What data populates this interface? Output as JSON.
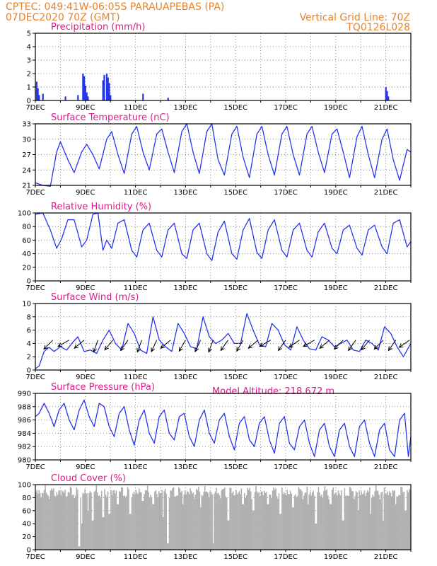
{
  "header": {
    "line1": "CPTEC:   049:41W-06:05S   PARAUAPEBAS (PA)",
    "line2_left": "07DEC2020 70Z (GMT)",
    "line2_right": "Vertical Grid Line: 70Z",
    "line3_right": "TQ0126L028",
    "model_altitude": "Model Altitude: 218.672  m"
  },
  "colors": {
    "line": "#2535ee",
    "bar": "#2535ee",
    "cloud": "#b0b0b0",
    "header": "#e8832a",
    "title": "#e0198c"
  },
  "x_ticks": [
    "7DEC",
    "9DEC",
    "11DEC",
    "13DEC",
    "15DEC",
    "17DEC",
    "19DEC",
    "21DEC"
  ],
  "chart_data": [
    {
      "type": "bar",
      "title": "Precipitation (mm/h)",
      "ylim": [
        0,
        5
      ],
      "y_ticks": [
        0,
        1,
        2,
        3,
        4,
        5
      ],
      "x_start_day": 7.0,
      "x_end_day": 22.0,
      "values": [
        [
          7.05,
          1.4
        ],
        [
          7.1,
          0.9
        ],
        [
          7.15,
          0.4
        ],
        [
          7.3,
          0.5
        ],
        [
          8.2,
          0.3
        ],
        [
          8.7,
          0.4
        ],
        [
          8.9,
          2.0
        ],
        [
          8.95,
          1.8
        ],
        [
          9.0,
          1.1
        ],
        [
          9.05,
          0.6
        ],
        [
          9.1,
          0.3
        ],
        [
          9.7,
          1.5
        ],
        [
          9.75,
          1.9
        ],
        [
          9.85,
          2.0
        ],
        [
          9.9,
          1.7
        ],
        [
          9.95,
          1.3
        ],
        [
          10.0,
          0.4
        ],
        [
          11.3,
          0.5
        ],
        [
          12.3,
          0.2
        ],
        [
          21.0,
          1.0
        ],
        [
          21.05,
          0.7
        ],
        [
          21.1,
          0.3
        ]
      ]
    },
    {
      "type": "line",
      "title": "Surface Temperature (nC)",
      "ylim": [
        21,
        33
      ],
      "y_ticks": [
        21,
        24,
        27,
        30,
        33
      ],
      "x": [
        7.0,
        7.3,
        7.6,
        7.85,
        8.0,
        8.3,
        8.55,
        8.85,
        9.05,
        9.3,
        9.55,
        9.85,
        10.05,
        10.3,
        10.55,
        10.85,
        11.05,
        11.3,
        11.55,
        11.85,
        12.05,
        12.3,
        12.55,
        12.85,
        13.05,
        13.3,
        13.55,
        13.85,
        14.05,
        14.3,
        14.55,
        14.85,
        15.05,
        15.3,
        15.55,
        15.85,
        16.05,
        16.3,
        16.55,
        16.85,
        17.05,
        17.3,
        17.55,
        17.85,
        18.05,
        18.3,
        18.55,
        18.85,
        19.05,
        19.3,
        19.55,
        19.85,
        20.05,
        20.3,
        20.55,
        20.85,
        21.05,
        21.3,
        21.55,
        21.85,
        22.0
      ],
      "values": [
        21.5,
        21.0,
        20.8,
        27.5,
        29.5,
        26.0,
        23.5,
        27.5,
        29.0,
        27.0,
        24.2,
        30.0,
        31.5,
        27.0,
        23.3,
        31.0,
        32.5,
        27.5,
        24.0,
        31.0,
        32.0,
        27.5,
        23.5,
        31.5,
        33.0,
        27.5,
        23.3,
        31.5,
        33.0,
        26.0,
        23.0,
        31.0,
        32.5,
        26.5,
        22.5,
        31.0,
        32.5,
        27.0,
        23.0,
        31.0,
        32.5,
        27.0,
        23.0,
        31.0,
        32.5,
        27.5,
        23.5,
        31.0,
        32.0,
        27.5,
        22.5,
        30.5,
        32.5,
        27.0,
        22.5,
        30.0,
        32.0,
        26.0,
        22.0,
        28.0,
        27.5
      ]
    },
    {
      "type": "line",
      "title": "Relative Humidity (%)",
      "ylim": [
        0,
        100
      ],
      "y_ticks": [
        0,
        20,
        40,
        60,
        80,
        100
      ],
      "x": [
        7.0,
        7.3,
        7.6,
        7.85,
        8.05,
        8.3,
        8.55,
        8.85,
        9.05,
        9.3,
        9.5,
        9.7,
        9.85,
        10.05,
        10.3,
        10.55,
        10.85,
        11.05,
        11.3,
        11.55,
        11.85,
        12.05,
        12.3,
        12.55,
        12.85,
        13.05,
        13.3,
        13.55,
        13.85,
        14.05,
        14.3,
        14.55,
        14.85,
        15.05,
        15.3,
        15.55,
        15.85,
        16.05,
        16.3,
        16.55,
        16.85,
        17.05,
        17.3,
        17.55,
        17.85,
        18.05,
        18.3,
        18.55,
        18.85,
        19.05,
        19.3,
        19.55,
        19.85,
        20.05,
        20.3,
        20.55,
        20.85,
        21.05,
        21.3,
        21.55,
        21.85,
        22.0
      ],
      "values": [
        98,
        100,
        75,
        48,
        62,
        90,
        90,
        50,
        60,
        98,
        100,
        45,
        60,
        48,
        85,
        90,
        45,
        35,
        75,
        85,
        45,
        35,
        75,
        85,
        40,
        33,
        75,
        85,
        40,
        30,
        72,
        88,
        40,
        32,
        75,
        92,
        42,
        33,
        75,
        90,
        45,
        35,
        75,
        85,
        45,
        35,
        72,
        85,
        48,
        40,
        75,
        82,
        48,
        38,
        75,
        82,
        50,
        40,
        85,
        90,
        50,
        58
      ]
    },
    {
      "type": "line",
      "title": "Surface Wind (m/s)",
      "ylim": [
        0,
        10
      ],
      "y_ticks": [
        0,
        2,
        4,
        6,
        8,
        10
      ],
      "x": [
        7.0,
        7.15,
        7.35,
        7.55,
        7.75,
        8.0,
        8.25,
        8.5,
        8.7,
        8.95,
        9.2,
        9.45,
        9.7,
        9.95,
        10.2,
        10.45,
        10.7,
        10.95,
        11.2,
        11.45,
        11.7,
        11.95,
        12.2,
        12.45,
        12.7,
        12.95,
        13.2,
        13.45,
        13.7,
        13.95,
        14.2,
        14.45,
        14.7,
        14.95,
        15.2,
        15.45,
        15.7,
        15.95,
        16.2,
        16.45,
        16.7,
        16.95,
        17.2,
        17.45,
        17.7,
        17.95,
        18.2,
        18.45,
        18.7,
        18.95,
        19.2,
        19.45,
        19.7,
        19.95,
        20.2,
        20.45,
        20.7,
        20.95,
        21.2,
        21.45,
        21.7,
        22.0
      ],
      "values": [
        0.2,
        0.6,
        2.8,
        3.4,
        2.8,
        3.5,
        3.0,
        4.2,
        5.0,
        2.8,
        3.0,
        2.5,
        4.5,
        6.0,
        4.0,
        3.0,
        7.0,
        5.5,
        3.0,
        2.5,
        8.0,
        4.5,
        3.5,
        2.8,
        7.0,
        5.5,
        3.5,
        3.2,
        8.0,
        5.0,
        4.0,
        4.5,
        5.5,
        4.0,
        4.0,
        8.5,
        6.0,
        3.8,
        3.5,
        7.0,
        6.0,
        3.8,
        3.0,
        6.5,
        4.5,
        3.2,
        3.0,
        5.0,
        4.5,
        3.5,
        4.0,
        4.5,
        3.0,
        2.8,
        4.5,
        4.0,
        3.0,
        6.5,
        5.5,
        3.5,
        2.0,
        4.0
      ],
      "arrows": [
        {
          "x": 7.7,
          "dir": 225
        },
        {
          "x": 8.35,
          "dir": 240
        },
        {
          "x": 8.95,
          "dir": 230
        },
        {
          "x": 9.5,
          "dir": 200
        },
        {
          "x": 10.1,
          "dir": 220
        },
        {
          "x": 10.7,
          "dir": 215
        },
        {
          "x": 11.25,
          "dir": 200
        },
        {
          "x": 11.85,
          "dir": 205
        },
        {
          "x": 12.4,
          "dir": 230
        },
        {
          "x": 13.0,
          "dir": 210
        },
        {
          "x": 13.6,
          "dir": 205
        },
        {
          "x": 14.1,
          "dir": 200
        },
        {
          "x": 14.7,
          "dir": 215
        },
        {
          "x": 15.3,
          "dir": 210
        },
        {
          "x": 15.9,
          "dir": 230
        },
        {
          "x": 16.4,
          "dir": 240
        },
        {
          "x": 17.0,
          "dir": 215
        },
        {
          "x": 17.55,
          "dir": 235
        },
        {
          "x": 18.15,
          "dir": 240
        },
        {
          "x": 18.75,
          "dir": 230
        },
        {
          "x": 19.3,
          "dir": 225
        },
        {
          "x": 19.8,
          "dir": 215
        },
        {
          "x": 20.35,
          "dir": 220
        },
        {
          "x": 20.9,
          "dir": 225
        },
        {
          "x": 21.4,
          "dir": 215
        },
        {
          "x": 21.95,
          "dir": 235
        }
      ]
    },
    {
      "type": "line",
      "title": "Surface Pressure (hPa)",
      "ylim": [
        980,
        990
      ],
      "y_ticks": [
        980,
        982,
        984,
        986,
        988,
        990
      ],
      "x": [
        7.0,
        7.15,
        7.35,
        7.55,
        7.75,
        7.95,
        8.15,
        8.35,
        8.55,
        8.75,
        8.95,
        9.15,
        9.35,
        9.55,
        9.75,
        9.95,
        10.15,
        10.35,
        10.55,
        10.75,
        10.95,
        11.15,
        11.35,
        11.55,
        11.75,
        11.95,
        12.15,
        12.35,
        12.55,
        12.75,
        12.95,
        13.15,
        13.35,
        13.55,
        13.75,
        13.95,
        14.15,
        14.35,
        14.55,
        14.75,
        14.95,
        15.15,
        15.35,
        15.55,
        15.75,
        15.95,
        16.15,
        16.35,
        16.55,
        16.75,
        16.95,
        17.15,
        17.35,
        17.55,
        17.75,
        17.95,
        18.15,
        18.35,
        18.55,
        18.75,
        18.95,
        19.15,
        19.35,
        19.55,
        19.75,
        19.95,
        20.15,
        20.35,
        20.55,
        20.75,
        20.95,
        21.15,
        21.35,
        21.55,
        21.75,
        21.9,
        22.0
      ],
      "values": [
        986.5,
        987.0,
        988.5,
        987.0,
        985.0,
        987.5,
        988.5,
        986.0,
        984.5,
        987.5,
        989.0,
        986.5,
        985.0,
        988.5,
        988.0,
        985.0,
        983.5,
        987.0,
        988.0,
        984.5,
        982.2,
        986.0,
        987.5,
        984.0,
        982.5,
        986.5,
        987.5,
        984.0,
        983.0,
        986.5,
        987.0,
        983.5,
        982.0,
        986.0,
        987.5,
        984.0,
        982.5,
        986.0,
        987.0,
        983.5,
        981.5,
        985.5,
        986.5,
        983.0,
        982.0,
        985.5,
        986.5,
        983.0,
        981.0,
        985.5,
        986.5,
        982.5,
        981.5,
        985.0,
        986.0,
        982.5,
        980.5,
        984.5,
        985.5,
        982.0,
        980.5,
        984.5,
        985.5,
        982.0,
        980.5,
        985.0,
        986.0,
        982.5,
        980.5,
        984.5,
        985.5,
        981.5,
        980.5,
        986.0,
        987.0,
        980.5,
        983.5
      ]
    },
    {
      "type": "bar",
      "title": "Cloud Cover (%)",
      "ylim": [
        0,
        100
      ],
      "y_ticks": [
        0,
        20,
        40,
        60,
        80,
        100
      ],
      "x_start_day": 7.0,
      "x_end_day": 22.0,
      "base": 88,
      "dips": [
        [
          8.75,
          5
        ],
        [
          8.85,
          40
        ],
        [
          9.1,
          60
        ],
        [
          9.3,
          45
        ],
        [
          9.7,
          50
        ],
        [
          9.95,
          55
        ],
        [
          10.3,
          70
        ],
        [
          10.8,
          55
        ],
        [
          11.3,
          75
        ],
        [
          11.7,
          70
        ],
        [
          12.1,
          50
        ],
        [
          12.3,
          10
        ],
        [
          12.9,
          70
        ],
        [
          13.6,
          65
        ],
        [
          14.1,
          10
        ],
        [
          14.7,
          45
        ],
        [
          15.3,
          70
        ],
        [
          15.7,
          60
        ],
        [
          16.3,
          70
        ],
        [
          16.8,
          55
        ],
        [
          17.3,
          65
        ],
        [
          17.9,
          70
        ],
        [
          18.2,
          40
        ],
        [
          18.8,
          70
        ],
        [
          19.3,
          45
        ],
        [
          19.9,
          60
        ],
        [
          20.4,
          55
        ],
        [
          20.9,
          45
        ],
        [
          21.4,
          70
        ],
        [
          21.8,
          60
        ]
      ]
    }
  ]
}
